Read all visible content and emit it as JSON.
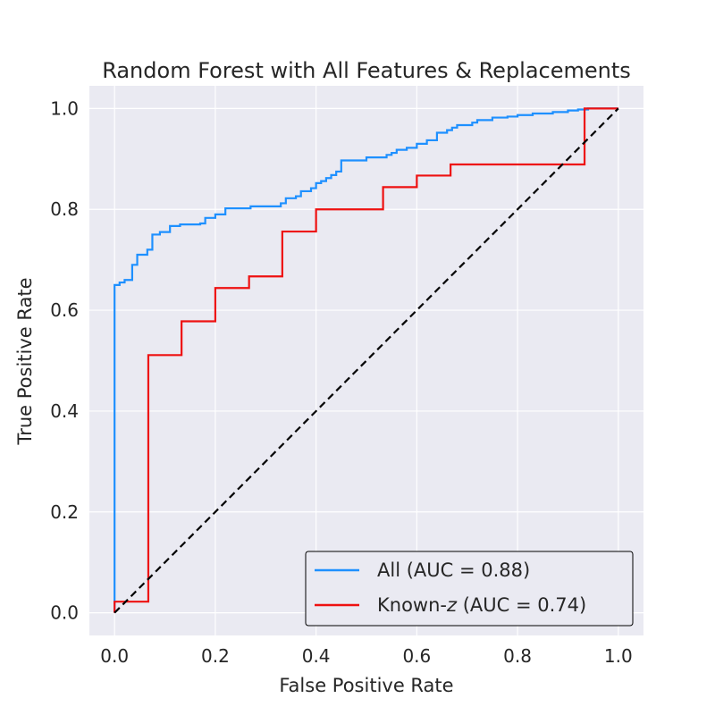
{
  "chart_data": {
    "type": "line",
    "title": "Random Forest with All Features & Replacements",
    "xlabel": "False Positive Rate",
    "ylabel": "True Positive Rate",
    "xlim": [
      -0.05,
      1.05
    ],
    "ylim": [
      -0.045,
      1.045
    ],
    "xticks": [
      0.0,
      0.2,
      0.4,
      0.6,
      0.8,
      1.0
    ],
    "xtick_labels": [
      "0.0",
      "0.2",
      "0.4",
      "0.6",
      "0.8",
      "1.0"
    ],
    "yticks": [
      0.0,
      0.2,
      0.4,
      0.6,
      0.8,
      1.0
    ],
    "ytick_labels": [
      "0.0",
      "0.2",
      "0.4",
      "0.6",
      "0.8",
      "1.0"
    ],
    "grid": true,
    "legend_position": "bottom-right",
    "series": [
      {
        "name": "All (AUC = 0.88)",
        "legend_main": "All (AUC = 0.88)",
        "legend_italic": "",
        "legend_suffix": "",
        "color": "#1e90ff",
        "style": "step",
        "x": [
          0.0,
          0.0,
          0.01,
          0.01,
          0.02,
          0.02,
          0.035,
          0.035,
          0.045,
          0.045,
          0.065,
          0.065,
          0.075,
          0.075,
          0.09,
          0.09,
          0.11,
          0.11,
          0.13,
          0.13,
          0.17,
          0.17,
          0.18,
          0.18,
          0.2,
          0.2,
          0.22,
          0.22,
          0.27,
          0.27,
          0.33,
          0.33,
          0.34,
          0.34,
          0.36,
          0.36,
          0.37,
          0.37,
          0.39,
          0.39,
          0.4,
          0.4,
          0.41,
          0.41,
          0.42,
          0.42,
          0.43,
          0.43,
          0.44,
          0.44,
          0.45,
          0.45,
          0.5,
          0.5,
          0.54,
          0.54,
          0.55,
          0.55,
          0.56,
          0.56,
          0.58,
          0.58,
          0.6,
          0.6,
          0.62,
          0.62,
          0.64,
          0.64,
          0.66,
          0.66,
          0.67,
          0.67,
          0.68,
          0.68,
          0.71,
          0.71,
          0.72,
          0.72,
          0.75,
          0.75,
          0.78,
          0.78,
          0.8,
          0.8,
          0.83,
          0.83,
          0.87,
          0.87,
          0.9,
          0.9,
          0.92,
          0.92,
          0.94,
          0.94,
          0.95,
          0.95,
          1.0,
          1.0
        ],
        "y": [
          0.0,
          0.65,
          0.65,
          0.655,
          0.655,
          0.66,
          0.66,
          0.69,
          0.69,
          0.71,
          0.71,
          0.72,
          0.72,
          0.75,
          0.75,
          0.755,
          0.755,
          0.767,
          0.767,
          0.77,
          0.77,
          0.772,
          0.772,
          0.783,
          0.783,
          0.79,
          0.79,
          0.802,
          0.802,
          0.806,
          0.806,
          0.812,
          0.812,
          0.822,
          0.822,
          0.826,
          0.826,
          0.836,
          0.836,
          0.842,
          0.842,
          0.852,
          0.852,
          0.856,
          0.856,
          0.862,
          0.862,
          0.868,
          0.868,
          0.875,
          0.875,
          0.897,
          0.897,
          0.903,
          0.903,
          0.908,
          0.908,
          0.912,
          0.912,
          0.918,
          0.918,
          0.922,
          0.922,
          0.93,
          0.93,
          0.937,
          0.937,
          0.952,
          0.952,
          0.957,
          0.957,
          0.962,
          0.962,
          0.967,
          0.967,
          0.972,
          0.972,
          0.977,
          0.977,
          0.982,
          0.982,
          0.984,
          0.984,
          0.987,
          0.987,
          0.99,
          0.99,
          0.993,
          0.993,
          0.996,
          0.996,
          0.998,
          0.998,
          1.0,
          1.0,
          1.0,
          1.0,
          1.0
        ]
      },
      {
        "name": "Known-z (AUC = 0.74)",
        "legend_main": "Known-",
        "legend_italic": "z",
        "legend_suffix": " (AUC = 0.74)",
        "color": "#ee1111",
        "style": "step",
        "x": [
          0.0,
          0.0,
          0.067,
          0.067,
          0.133,
          0.133,
          0.2,
          0.2,
          0.267,
          0.267,
          0.333,
          0.333,
          0.4,
          0.4,
          0.533,
          0.533,
          0.6,
          0.6,
          0.667,
          0.667,
          0.933,
          0.933,
          1.0
        ],
        "y": [
          0.0,
          0.022,
          0.022,
          0.511,
          0.511,
          0.578,
          0.578,
          0.644,
          0.644,
          0.667,
          0.667,
          0.756,
          0.756,
          0.8,
          0.8,
          0.844,
          0.844,
          0.867,
          0.867,
          0.889,
          0.889,
          1.0,
          1.0
        ]
      },
      {
        "name": "",
        "legend_main": "",
        "legend_italic": "",
        "legend_suffix": "",
        "color": "#000000",
        "style": "dashed",
        "x": [
          0.0,
          1.0
        ],
        "y": [
          0.0,
          1.0
        ]
      }
    ]
  }
}
